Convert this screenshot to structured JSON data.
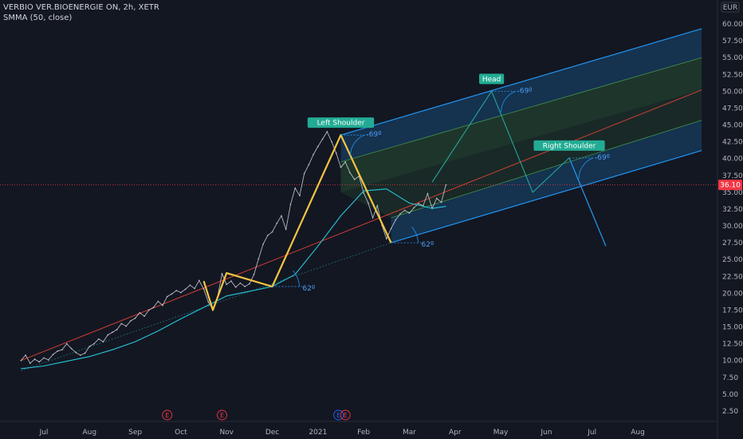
{
  "header": {
    "symbol_line": "VERBIO VER.BIOENERGIE ON, 2h, XETR",
    "indicator_line": "SMMA (50, close)"
  },
  "currency_label": "EUR",
  "current_price_label": "36.10",
  "colors": {
    "background": "#131722",
    "price_line": "#d1d4dc",
    "smma": "#26c6da",
    "pattern": "#f5c542",
    "channel": "#2196f3",
    "channel_mid": "#f44336",
    "tag": "#22ab94",
    "projection": "#26a69a",
    "current_price": "#f23645",
    "event": "#f23645",
    "event_blue": "#2962ff"
  },
  "chart_data": {
    "type": "line",
    "title": "VERBIO VER.BIOENERGIE ON, 2h, XETR",
    "xlabel": "",
    "ylabel": "",
    "ylim": [
      0,
      62.5
    ],
    "xlim": [
      0,
      14.9
    ],
    "grid": false,
    "y_ticks": [
      "2.50",
      "5.00",
      "7.50",
      "10.00",
      "12.50",
      "15.00",
      "17.50",
      "20.00",
      "22.50",
      "25.00",
      "27.50",
      "30.00",
      "32.50",
      "35.00",
      "37.50",
      "40.00",
      "42.50",
      "45.00",
      "47.50",
      "50.00",
      "52.50",
      "55.00",
      "57.50",
      "60.00"
    ],
    "x_ticks": [
      {
        "label": "Jul",
        "x": 0.5
      },
      {
        "label": "Aug",
        "x": 1.5
      },
      {
        "label": "Sep",
        "x": 2.5
      },
      {
        "label": "Oct",
        "x": 3.5
      },
      {
        "label": "Nov",
        "x": 4.5
      },
      {
        "label": "Dec",
        "x": 5.5
      },
      {
        "label": "2021",
        "x": 6.5
      },
      {
        "label": "Feb",
        "x": 7.5
      },
      {
        "label": "Mar",
        "x": 8.5
      },
      {
        "label": "Apr",
        "x": 9.5
      },
      {
        "label": "May",
        "x": 10.5
      },
      {
        "label": "Jun",
        "x": 11.5
      },
      {
        "label": "Jul",
        "x": 12.5
      },
      {
        "label": "Aug",
        "x": 13.5
      }
    ],
    "series": [
      {
        "type": "price",
        "x": [
          0,
          0.1,
          0.2,
          0.3,
          0.4,
          0.5,
          0.6,
          0.7,
          0.8,
          0.9,
          1.0,
          1.1,
          1.2,
          1.3,
          1.4,
          1.5,
          1.6,
          1.7,
          1.8,
          1.9,
          2.0,
          2.1,
          2.2,
          2.3,
          2.4,
          2.5,
          2.6,
          2.7,
          2.8,
          2.9,
          3.0,
          3.1,
          3.2,
          3.3,
          3.4,
          3.5,
          3.6,
          3.7,
          3.8,
          3.9,
          4.0,
          4.1,
          4.2,
          4.3,
          4.4,
          4.5,
          4.6,
          4.7,
          4.8,
          4.9,
          5.0,
          5.1,
          5.2,
          5.3,
          5.4,
          5.5,
          5.6,
          5.7,
          5.8,
          5.9,
          6.0,
          6.1,
          6.2,
          6.3,
          6.4,
          6.5,
          6.6,
          6.7,
          6.8,
          6.9,
          7.0,
          7.1,
          7.2,
          7.3,
          7.4,
          7.5,
          7.6,
          7.7,
          7.8,
          7.9,
          8.0,
          8.1,
          8.2,
          8.3,
          8.4,
          8.5,
          8.6,
          8.7,
          8.8,
          8.9,
          9.0,
          9.1,
          9.2,
          9.3
        ],
        "values": [
          10.0,
          10.8,
          9.6,
          10.2,
          9.8,
          10.4,
          10.1,
          10.9,
          11.4,
          11.6,
          12.5,
          11.8,
          11.2,
          10.8,
          11.1,
          12.1,
          12.5,
          13.2,
          12.8,
          13.8,
          14.2,
          14.6,
          15.5,
          15.1,
          15.9,
          16.3,
          17.1,
          16.6,
          17.5,
          17.9,
          18.8,
          18.2,
          19.5,
          19.9,
          20.4,
          20.1,
          20.6,
          21.2,
          20.7,
          21.9,
          20.6,
          18.7,
          17.6,
          19.4,
          22.9,
          21.3,
          21.8,
          20.9,
          21.5,
          21.0,
          21.4,
          22.8,
          25.1,
          27.3,
          28.6,
          29.1,
          30.4,
          31.5,
          29.5,
          33.2,
          35.6,
          34.5,
          37.8,
          39.1,
          40.6,
          41.8,
          42.9,
          44.0,
          42.5,
          40.8,
          38.7,
          39.5,
          37.9,
          36.9,
          37.4,
          34.9,
          33.4,
          31.2,
          33.0,
          30.1,
          28.1,
          29.6,
          30.9,
          31.8,
          32.3,
          31.9,
          32.7,
          33.3,
          33.0,
          34.8,
          32.6,
          34.1,
          33.5,
          36.1
        ]
      },
      {
        "type": "smma",
        "name": "SMMA (50, close)",
        "x": [
          0,
          0.5,
          1.0,
          1.5,
          2.0,
          2.5,
          3.0,
          3.5,
          4.0,
          4.5,
          5.0,
          5.5,
          6.0,
          6.5,
          7.0,
          7.5,
          8.0,
          8.5,
          9.0,
          9.3
        ],
        "values": [
          8.8,
          9.2,
          9.9,
          10.6,
          11.6,
          12.8,
          14.4,
          16.2,
          17.9,
          19.6,
          20.3,
          21.0,
          22.8,
          27.0,
          31.5,
          35.2,
          35.5,
          33.4,
          32.6,
          32.9
        ]
      }
    ],
    "pattern_segments": [
      [
        [
          4.0,
          21.8
        ],
        [
          4.2,
          17.5
        ],
        [
          4.5,
          23.0
        ],
        [
          5.5,
          21.0
        ],
        [
          7.0,
          43.5
        ],
        [
          8.1,
          27.5
        ]
      ]
    ],
    "channel": {
      "upper": [
        [
          7.0,
          43.5
        ],
        [
          14.9,
          59.3
        ]
      ],
      "lower": [
        [
          8.1,
          27.5
        ],
        [
          14.9,
          41.2
        ]
      ],
      "quarter_up": [
        [
          7.0,
          39.5
        ],
        [
          14.9,
          55.0
        ]
      ],
      "quarter_low": [
        [
          7.0,
          35.0
        ],
        [
          14.9,
          50.2
        ]
      ],
      "median_from": [
        [
          0,
          10.0
        ],
        [
          14.9,
          50.2
        ]
      ],
      "baseline_from": [
        [
          0,
          8.5
        ],
        [
          8.1,
          27.5
        ]
      ]
    },
    "projection": [
      [
        9.0,
        36.5
      ],
      [
        10.3,
        50.0
      ],
      [
        11.2,
        35.0
      ],
      [
        12.0,
        40.1
      ],
      [
        12.8,
        27.0
      ]
    ],
    "annotations": [
      {
        "label": "Left Shoulder",
        "x": 7.0,
        "y": 43.5,
        "angle": "-69º"
      },
      {
        "label": "Head",
        "x": 10.3,
        "y": 50.0,
        "angle": "-69º"
      },
      {
        "label": "Right Shoulder",
        "x": 12.0,
        "y": 40.1,
        "angle": "-69º"
      }
    ],
    "angle_labels": [
      {
        "text": "62º",
        "x": 5.5,
        "y": 21.0
      },
      {
        "text": "62º",
        "x": 8.1,
        "y": 27.5
      }
    ],
    "events": [
      {
        "label": "E",
        "x": 3.2,
        "color": "#f23645"
      },
      {
        "label": "E",
        "x": 4.4,
        "color": "#f23645"
      },
      {
        "label": "E",
        "x": 6.95,
        "color": "#2962ff"
      },
      {
        "label": "E",
        "x": 7.1,
        "color": "#f23645"
      }
    ],
    "current_price": 36.1
  }
}
